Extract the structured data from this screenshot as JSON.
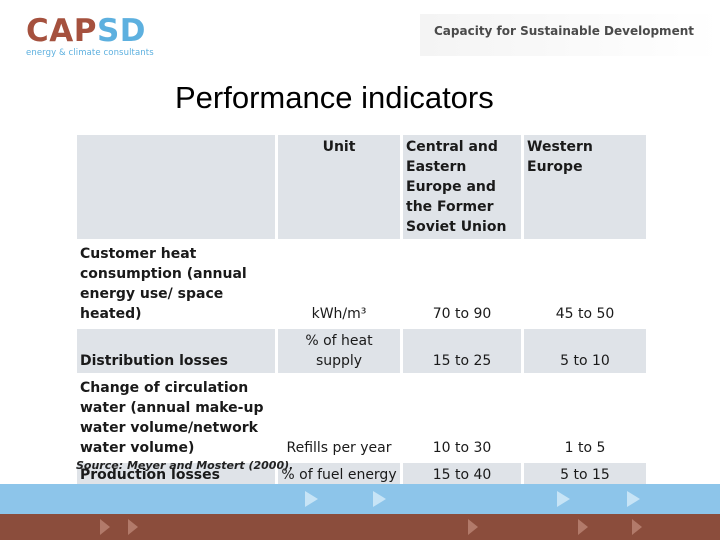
{
  "logo": {
    "word_a": "CAP",
    "word_b": "SD",
    "subtitle": "energy & climate consultants"
  },
  "tagline": "Capacity for Sustainable Development",
  "title": "Performance indicators",
  "table": {
    "headers": [
      "",
      "Unit",
      "Central and Eastern Europe and the Former Soviet Union",
      "Western Europe"
    ],
    "rows": [
      {
        "label": "Customer heat consumption (annual energy use/ space heated)",
        "unit": "kWh/m³",
        "ceefsu": "70 to 90",
        "we": "45 to 50"
      },
      {
        "label": "Distribution losses",
        "unit": "% of heat supply",
        "ceefsu": "15 to 25",
        "we": "5 to 10"
      },
      {
        "label": "Change of circulation water (annual make-up water volume/network water volume)",
        "unit": "Refills per year",
        "ceefsu": "10 to 30",
        "we": "1 to 5"
      },
      {
        "label": "Production losses",
        "unit": "% of fuel energy",
        "ceefsu": "15 to 40",
        "we": "5 to 15"
      }
    ]
  },
  "source": "Source: Meyer and Mostert (2000).",
  "colors": {
    "brand_brown": "#a5513e",
    "brand_blue": "#5db0df",
    "band_blue": "#8dc5ea",
    "band_brown": "#8b4d3c",
    "cell_shade": "#dfe3e8"
  },
  "icons": [
    "arrow-right-icon"
  ]
}
